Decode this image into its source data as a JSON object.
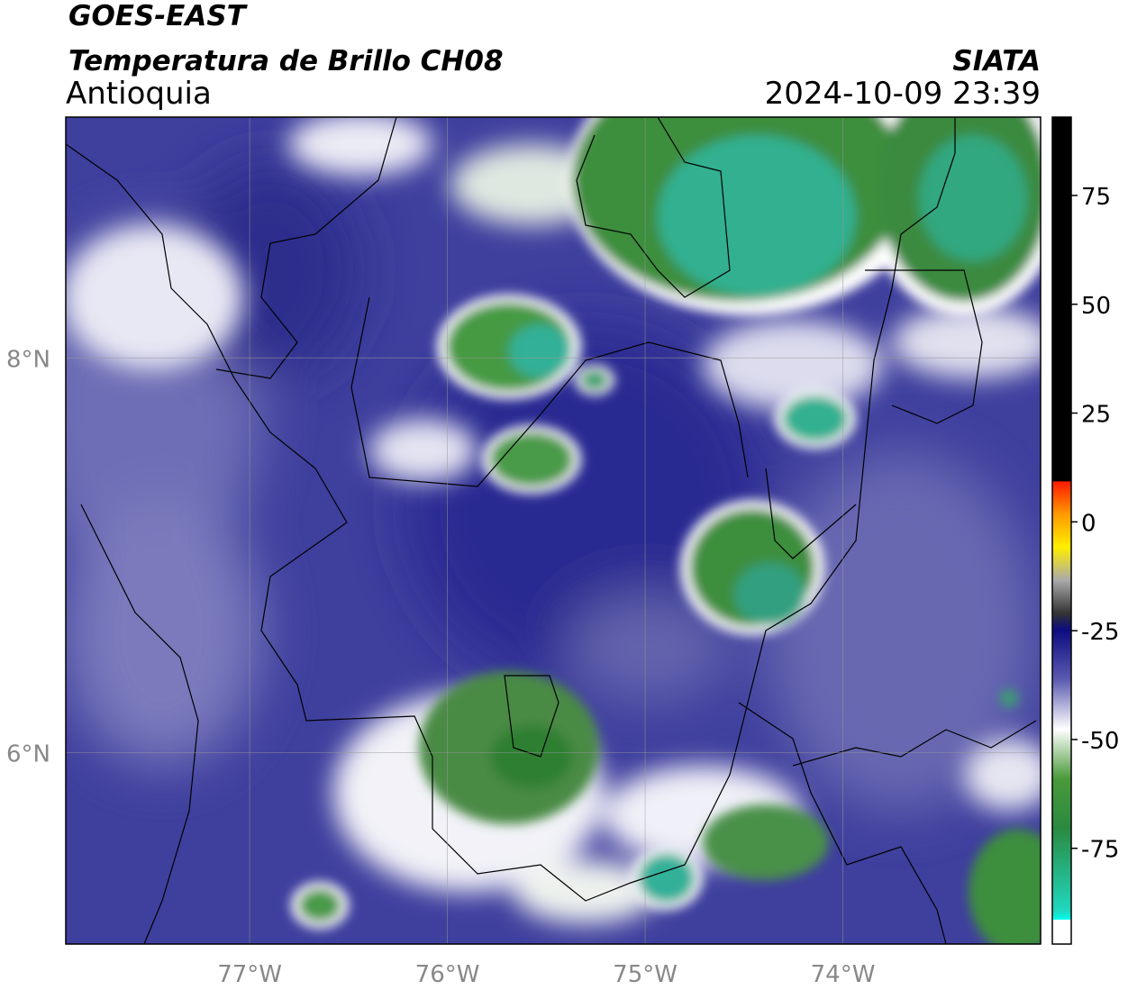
{
  "header": {
    "satellite": "GOES-EAST",
    "product": "Temperatura de Brillo CH08",
    "region": "Antioquia",
    "agency": "SIATA",
    "timestamp": "2024-10-09 23:39"
  },
  "map": {
    "xlim": [
      -77.93,
      -73.0
    ],
    "ylim": [
      5.03,
      9.22
    ],
    "xticks": [
      {
        "value": -77,
        "label": "77°W"
      },
      {
        "value": -76,
        "label": "76°W"
      },
      {
        "value": -75,
        "label": "75°W"
      },
      {
        "value": -74,
        "label": "74°W"
      }
    ],
    "yticks": [
      {
        "value": 6,
        "label": "6°N"
      },
      {
        "value": 8,
        "label": "8°N"
      }
    ],
    "grid": true
  },
  "colorbar": {
    "lim": [
      -97,
      93
    ],
    "ticks": [
      75,
      50,
      25,
      0,
      -25,
      -50,
      -75
    ]
  }
}
